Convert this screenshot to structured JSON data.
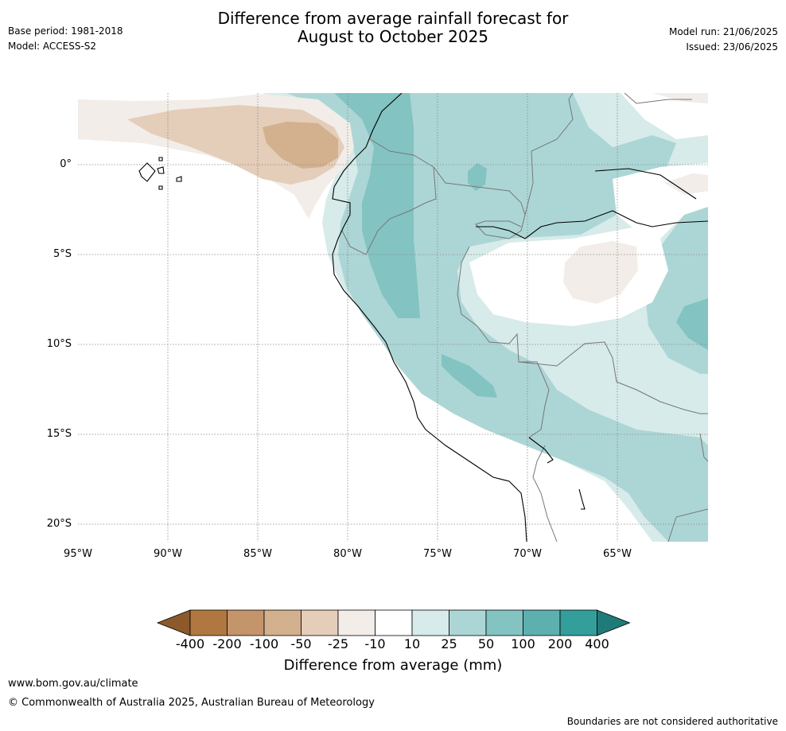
{
  "header": {
    "title_line1": "Difference from average rainfall forecast for",
    "title_line2": "August to October 2025",
    "base_period": "Base period: 1981-2018",
    "model": "Model: ACCESS-S2",
    "model_run": "Model run: 21/06/2025",
    "issued": "Issued: 23/06/2025"
  },
  "map": {
    "lat_ticks": [
      "0°",
      "5°S",
      "10°S",
      "15°S",
      "20°S"
    ],
    "lon_ticks": [
      "95°W",
      "90°W",
      "85°W",
      "80°W",
      "75°W",
      "70°W",
      "65°W"
    ]
  },
  "legend": {
    "title": "Difference from average (mm)",
    "labels": [
      "-400",
      "-200",
      "-100",
      "-50",
      "-25",
      "-10",
      "10",
      "25",
      "50",
      "100",
      "200",
      "400"
    ],
    "colors": [
      "#8c5a2a",
      "#b07840",
      "#c4946a",
      "#d3b08e",
      "#e4cdb9",
      "#f2ede8",
      "#ffffff",
      "#d6ebea",
      "#acd6d5",
      "#83c3c2",
      "#5eb0af",
      "#349e9a",
      "#1f7b78"
    ]
  },
  "footer": {
    "url": "www.bom.gov.au/climate",
    "copyright": "© Commonwealth of Australia 2025, Australian Bureau of Meteorology",
    "disclaimer": "Boundaries are not considered authoritative"
  }
}
